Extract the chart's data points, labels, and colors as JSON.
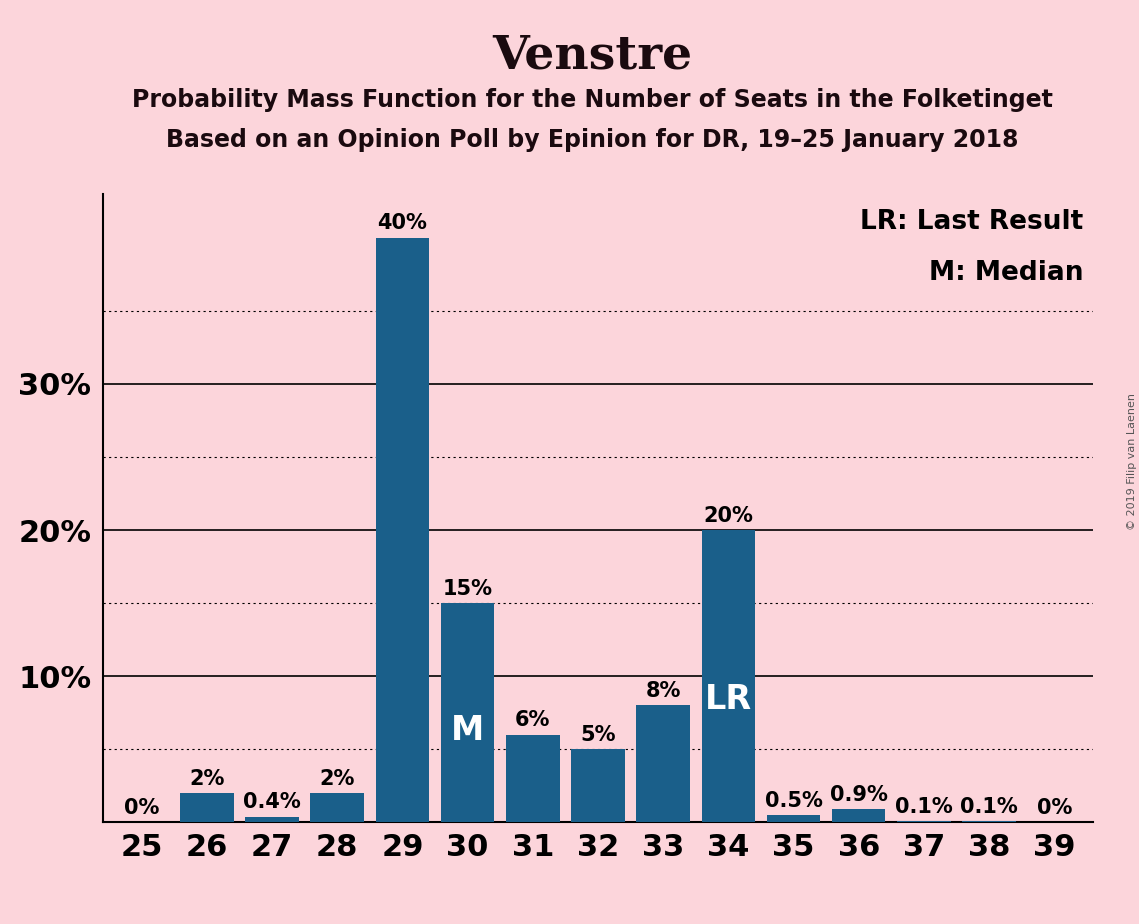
{
  "title": "Venstre",
  "subtitle1": "Probability Mass Function for the Number of Seats in the Folketinget",
  "subtitle2": "Based on an Opinion Poll by Epinion for DR, 19–25 January 2018",
  "copyright": "© 2019 Filip van Laenen",
  "categories": [
    25,
    26,
    27,
    28,
    29,
    30,
    31,
    32,
    33,
    34,
    35,
    36,
    37,
    38,
    39
  ],
  "values": [
    0.0,
    2.0,
    0.4,
    2.0,
    40.0,
    15.0,
    6.0,
    5.0,
    8.0,
    20.0,
    0.5,
    0.9,
    0.1,
    0.1,
    0.0
  ],
  "labels": [
    "0%",
    "2%",
    "0.4%",
    "2%",
    "40%",
    "15%",
    "6%",
    "5%",
    "8%",
    "20%",
    "0.5%",
    "0.9%",
    "0.1%",
    "0.1%",
    "0%"
  ],
  "bar_color": "#1a5f8a",
  "background_color": "#fcd5db",
  "median_bar": 30,
  "lr_bar": 34,
  "median_label": "M",
  "lr_label": "LR",
  "legend_lr": "LR: Last Result",
  "legend_m": "M: Median",
  "ylim": [
    0,
    43
  ],
  "solid_lines": [
    10,
    20,
    30
  ],
  "dotted_lines": [
    5,
    15,
    25,
    35
  ],
  "title_fontsize": 34,
  "subtitle_fontsize": 17,
  "axis_tick_fontsize": 22,
  "label_fontsize": 15,
  "legend_fontsize": 19,
  "inside_label_fontsize": 24
}
